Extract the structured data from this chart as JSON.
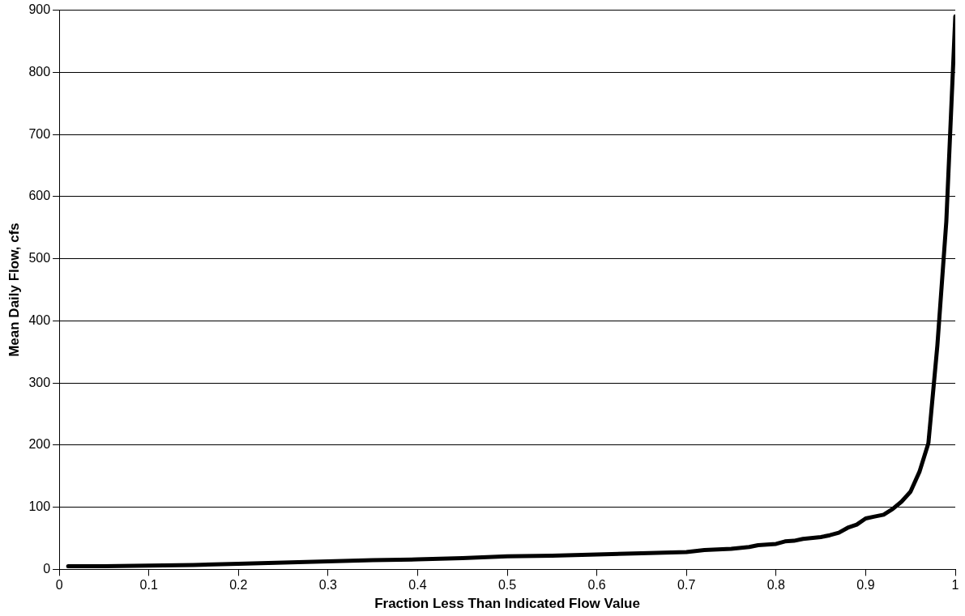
{
  "chart_data": {
    "type": "line",
    "xlabel": "Fraction Less Than Indicated Flow Value",
    "ylabel": "Mean Daily Flow, cfs",
    "x": [
      0.01,
      0.05,
      0.1,
      0.15,
      0.2,
      0.25,
      0.3,
      0.35,
      0.4,
      0.45,
      0.5,
      0.55,
      0.6,
      0.65,
      0.7,
      0.72,
      0.75,
      0.77,
      0.78,
      0.8,
      0.81,
      0.82,
      0.83,
      0.85,
      0.86,
      0.87,
      0.88,
      0.89,
      0.9,
      0.91,
      0.92,
      0.93,
      0.94,
      0.95,
      0.96,
      0.97,
      0.98,
      0.99,
      1.0
    ],
    "series": [
      {
        "color": "#000000",
        "values": [
          5,
          5,
          6,
          7,
          9,
          11,
          13,
          15,
          16,
          18,
          21,
          22,
          24,
          26,
          28,
          31,
          33,
          36,
          39,
          41,
          45,
          46,
          49,
          52,
          55,
          59,
          67,
          72,
          82,
          85,
          88,
          97,
          109,
          125,
          157,
          203,
          360,
          560,
          890
        ]
      }
    ],
    "xlim": [
      0,
      1
    ],
    "xticks": [
      0,
      0.1,
      0.2,
      0.3,
      0.4,
      0.5,
      0.6,
      0.7,
      0.8,
      0.9,
      1
    ],
    "ylim": [
      0,
      900
    ],
    "yticks": [
      0,
      100,
      200,
      300,
      400,
      500,
      600,
      700,
      800,
      900
    ],
    "grid": "y",
    "legend": false,
    "marker": "none",
    "line_style": "solid"
  }
}
